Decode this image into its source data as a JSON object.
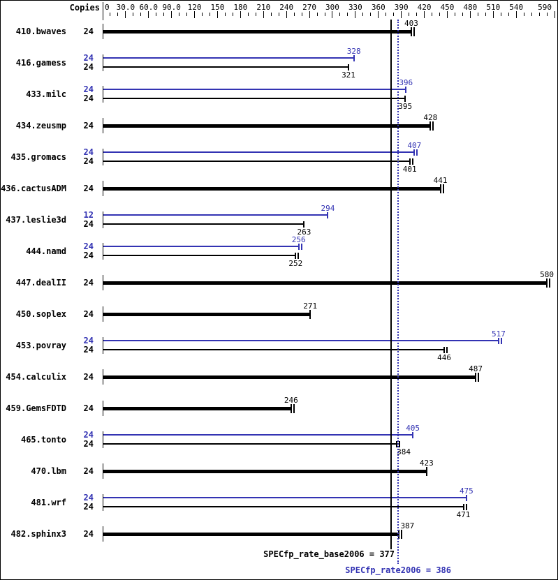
{
  "chart_data": {
    "type": "bar",
    "orientation": "horizontal",
    "title": "",
    "axis": {
      "copies_label": "Copies",
      "min": 0,
      "max": 590,
      "minor_step": 10,
      "major_ticks": [
        {
          "v": 0,
          "label": "0"
        },
        {
          "v": 30,
          "label": "30.0"
        },
        {
          "v": 60,
          "label": "60.0"
        },
        {
          "v": 90,
          "label": "90.0"
        },
        {
          "v": 120,
          "label": "120"
        },
        {
          "v": 150,
          "label": "150"
        },
        {
          "v": 180,
          "label": "180"
        },
        {
          "v": 210,
          "label": "210"
        },
        {
          "v": 240,
          "label": "240"
        },
        {
          "v": 270,
          "label": "270"
        },
        {
          "v": 300,
          "label": "300"
        },
        {
          "v": 330,
          "label": "330"
        },
        {
          "v": 360,
          "label": "360"
        },
        {
          "v": 390,
          "label": "390"
        },
        {
          "v": 420,
          "label": "420"
        },
        {
          "v": 450,
          "label": "450"
        },
        {
          "v": 480,
          "label": "480"
        },
        {
          "v": 510,
          "label": "510"
        },
        {
          "v": 540,
          "label": "540"
        },
        {
          "v": 590,
          "label": "590"
        }
      ]
    },
    "benchmarks": [
      {
        "name": "410.bwaves",
        "bars": [
          {
            "type": "base",
            "copies": 24,
            "value": 403,
            "thick": true,
            "end_ticks": 2
          }
        ]
      },
      {
        "name": "416.gamess",
        "bars": [
          {
            "type": "peak",
            "copies": 24,
            "value": 328,
            "end_ticks": 1
          },
          {
            "type": "base",
            "copies": 24,
            "value": 321,
            "end_ticks": 1
          }
        ]
      },
      {
        "name": "433.milc",
        "bars": [
          {
            "type": "peak",
            "copies": 24,
            "value": 396,
            "end_ticks": 1
          },
          {
            "type": "base",
            "copies": 24,
            "value": 395,
            "end_ticks": 1
          }
        ]
      },
      {
        "name": "434.zeusmp",
        "bars": [
          {
            "type": "base",
            "copies": 24,
            "value": 428,
            "thick": true,
            "end_ticks": 2
          }
        ]
      },
      {
        "name": "435.gromacs",
        "bars": [
          {
            "type": "peak",
            "copies": 24,
            "value": 407,
            "end_ticks": 2
          },
          {
            "type": "base",
            "copies": 24,
            "value": 401,
            "end_ticks": 2
          }
        ]
      },
      {
        "name": "436.cactusADM",
        "bars": [
          {
            "type": "base",
            "copies": 24,
            "value": 441,
            "thick": true,
            "end_ticks": 2
          }
        ]
      },
      {
        "name": "437.leslie3d",
        "bars": [
          {
            "type": "peak",
            "copies": 12,
            "value": 294,
            "end_ticks": 1
          },
          {
            "type": "base",
            "copies": 24,
            "value": 263,
            "end_ticks": 1
          }
        ]
      },
      {
        "name": "444.namd",
        "bars": [
          {
            "type": "peak",
            "copies": 24,
            "value": 256,
            "end_ticks": 2
          },
          {
            "type": "base",
            "copies": 24,
            "value": 252,
            "end_ticks": 2
          }
        ]
      },
      {
        "name": "447.dealII",
        "bars": [
          {
            "type": "base",
            "copies": 24,
            "value": 580,
            "thick": true,
            "end_ticks": 2
          }
        ]
      },
      {
        "name": "450.soplex",
        "bars": [
          {
            "type": "base",
            "copies": 24,
            "value": 271,
            "thick": true,
            "end_ticks": 1
          }
        ]
      },
      {
        "name": "453.povray",
        "bars": [
          {
            "type": "peak",
            "copies": 24,
            "value": 517,
            "end_ticks": 2
          },
          {
            "type": "base",
            "copies": 24,
            "value": 446,
            "end_ticks": 2
          }
        ]
      },
      {
        "name": "454.calculix",
        "bars": [
          {
            "type": "base",
            "copies": 24,
            "value": 487,
            "thick": true,
            "end_ticks": 2
          }
        ]
      },
      {
        "name": "459.GemsFDTD",
        "bars": [
          {
            "type": "base",
            "copies": 24,
            "value": 246,
            "thick": true,
            "end_ticks": 2
          }
        ]
      },
      {
        "name": "465.tonto",
        "bars": [
          {
            "type": "peak",
            "copies": 24,
            "value": 405,
            "end_ticks": 1
          },
          {
            "type": "base",
            "copies": 24,
            "value": 384,
            "end_ticks": 2,
            "label_dx": 10
          }
        ]
      },
      {
        "name": "470.lbm",
        "bars": [
          {
            "type": "base",
            "copies": 24,
            "value": 423,
            "thick": true,
            "end_ticks": 1
          }
        ]
      },
      {
        "name": "481.wrf",
        "bars": [
          {
            "type": "peak",
            "copies": 24,
            "value": 475,
            "end_ticks": 1
          },
          {
            "type": "base",
            "copies": 24,
            "value": 471,
            "end_ticks": 2
          }
        ]
      },
      {
        "name": "482.sphinx3",
        "bars": [
          {
            "type": "base",
            "copies": 24,
            "value": 387,
            "thick": true,
            "end_ticks": 2,
            "label_dx": 12
          }
        ]
      }
    ],
    "reference_lines": [
      {
        "label": "SPECfp_rate_base2006 = 377",
        "value": 377,
        "style": "solid",
        "color": "base"
      },
      {
        "label": "SPECfp_rate2006 = 386",
        "value": 386,
        "style": "dotted",
        "color": "peak"
      }
    ],
    "colors": {
      "base": "#000000",
      "peak": "#3333b3"
    },
    "legend_position": "none",
    "grid": false
  }
}
